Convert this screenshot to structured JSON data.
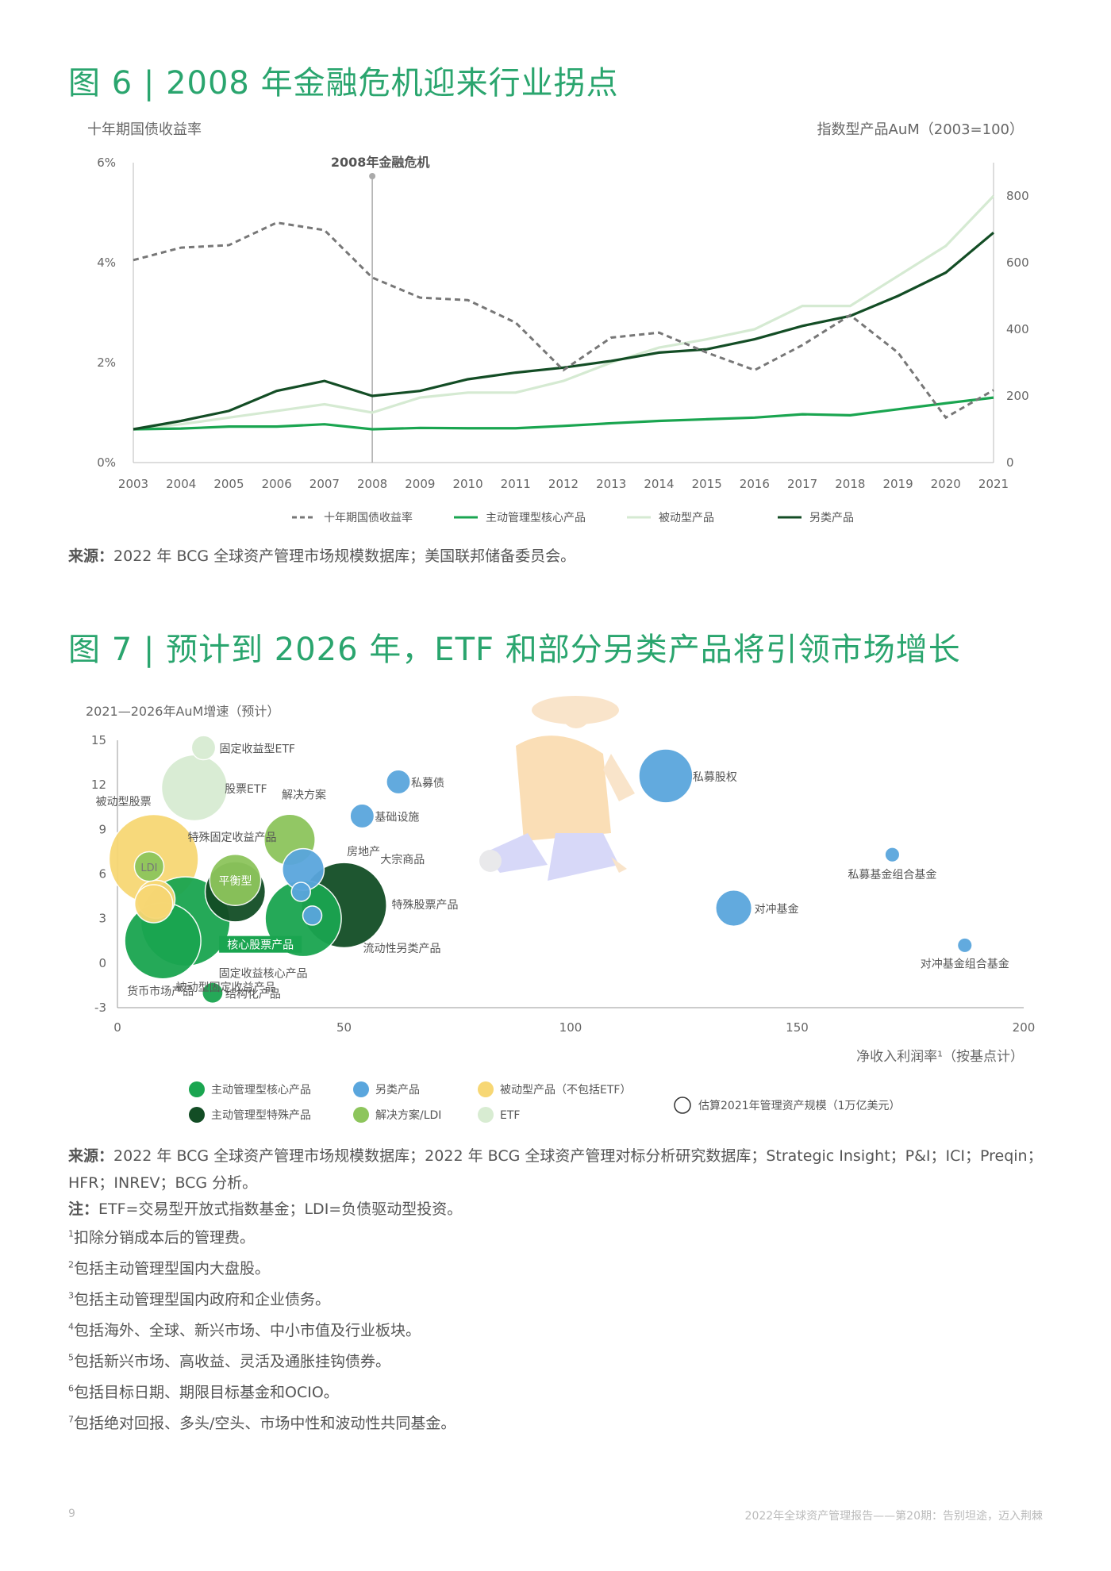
{
  "fig6": {
    "title": "图 6 | 2008 年金融危机迎来行业拐点",
    "left_axis_title": "十年期国债收益率",
    "right_axis_title": "指数型产品AuM（2003=100）",
    "annotation": "2008年金融危机",
    "source_label": "来源：",
    "source_text": "2022 年 BCG 全球资产管理市场规模数据库；美国联邦储备委员会。"
  },
  "fig7": {
    "title": "图 7 | 预计到 2026 年，ETF 和部分另类产品将引领市场增长",
    "y_title": "2021—2026年AuM增速（预计）",
    "x_title": "净收入利润率¹（按基点计）",
    "source_label": "来源：",
    "source_text": "2022 年 BCG 全球资产管理市场规模数据库；2022 年 BCG 全球资产管理对标分析研究数据库；Strategic Insight；P&I；ICI；Preqin；HFR；INREV；BCG 分析。",
    "note_label": "注：",
    "note_text": "ETF=交易型开放式指数基金；LDI=负债驱动型投资。",
    "footnotes": [
      {
        "num": "1",
        "text": "扣除分销成本后的管理费。"
      },
      {
        "num": "2",
        "text": "包括主动管理型国内大盘股。"
      },
      {
        "num": "3",
        "text": "包括主动管理型国内政府和企业债务。"
      },
      {
        "num": "4",
        "text": "包括海外、全球、新兴市场、中小市值及行业板块。"
      },
      {
        "num": "5",
        "text": "包括新兴市场、高收益、灵活及通胀挂钩债券。"
      },
      {
        "num": "6",
        "text": "包括目标日期、期限目标基金和OCIO。"
      },
      {
        "num": "7",
        "text": "包括绝对回报、多头/空头、市场中性和波动性共同基金。"
      }
    ],
    "size_legend": "估算2021年管理资产规模（1万亿美元）"
  },
  "footer": {
    "page": "9",
    "report": "2022年全球资产管理报告——第20期：告别坦途，迈入荆棘"
  },
  "colors": {
    "title": "#2aa56e",
    "active_core": "#1aa550",
    "passive": "#d5ead2",
    "alternative": "#134d25",
    "treasury": "#777777",
    "blue": "#5aa6dd",
    "yellow": "#f7d774",
    "solution": "#8dc55c",
    "etf": "#d8ecd2",
    "active_special": "#134d25"
  },
  "chart_data": [
    {
      "type": "line",
      "x": [
        "2003",
        "2004",
        "2005",
        "2006",
        "2007",
        "2008",
        "2009",
        "2010",
        "2011",
        "2012",
        "2013",
        "2014",
        "2015",
        "2016",
        "2017",
        "2018",
        "2019",
        "2020",
        "2021"
      ],
      "left_ylim": [
        0,
        6
      ],
      "left_ticks": [
        "0%",
        "2%",
        "4%",
        "6%"
      ],
      "right_ylim": [
        0,
        900
      ],
      "right_ticks": [
        "0",
        "200",
        "400",
        "600",
        "800"
      ],
      "series": [
        {
          "name": "十年期国债收益率",
          "axis": "left",
          "style": "dashed",
          "color": "#777777",
          "values": [
            4.05,
            4.3,
            4.35,
            4.8,
            4.65,
            3.7,
            3.3,
            3.25,
            2.8,
            1.85,
            2.5,
            2.6,
            2.2,
            1.85,
            2.35,
            2.95,
            2.2,
            0.9,
            1.45
          ]
        },
        {
          "name": "主动管理型核心产品",
          "axis": "right",
          "style": "solid",
          "color": "#1aa550",
          "values": [
            100,
            102,
            108,
            108,
            115,
            100,
            104,
            103,
            103,
            110,
            118,
            125,
            130,
            135,
            145,
            142,
            160,
            178,
            195
          ]
        },
        {
          "name": "被动型产品",
          "axis": "right",
          "style": "solid",
          "color": "#d5ead2",
          "values": [
            100,
            115,
            135,
            155,
            175,
            150,
            195,
            210,
            210,
            245,
            300,
            345,
            370,
            400,
            470,
            470,
            560,
            650,
            800
          ]
        },
        {
          "name": "另类产品",
          "axis": "right",
          "style": "solid",
          "color": "#134d25",
          "values": [
            100,
            125,
            155,
            215,
            245,
            200,
            215,
            250,
            270,
            285,
            305,
            330,
            340,
            370,
            410,
            440,
            500,
            570,
            690
          ]
        }
      ],
      "annotation": {
        "x": "2008",
        "text": "2008年金融危机"
      }
    },
    {
      "type": "scatter",
      "xlim": [
        0,
        200
      ],
      "ylim": [
        -3,
        15
      ],
      "x_ticks": [
        0,
        50,
        100,
        150,
        200
      ],
      "y_ticks": [
        -3,
        0,
        3,
        6,
        9,
        12,
        15
      ],
      "legend": [
        {
          "name": "主动管理型核心产品",
          "color": "#1aa550"
        },
        {
          "name": "另类产品",
          "color": "#5aa6dd"
        },
        {
          "name": "被动型产品（不包括ETF）",
          "color": "#f7d774"
        },
        {
          "name": "主动管理型特殊产品",
          "color": "#134d25"
        },
        {
          "name": "解决方案/LDI",
          "color": "#8dc55c"
        },
        {
          "name": "ETF",
          "color": "#d8ecd2"
        }
      ],
      "points": [
        {
          "label": "固定收益型ETF",
          "x": 19,
          "y": 14.5,
          "size": 0.4,
          "group": "ETF"
        },
        {
          "label": "股票ETF",
          "x": 17,
          "y": 11.8,
          "size": 3,
          "group": "ETF"
        },
        {
          "label": "被动型股票",
          "x": 8,
          "y": 7,
          "size": 5.5,
          "group": "被动型产品（不包括ETF）"
        },
        {
          "label": "LDI",
          "x": 7,
          "y": 6.5,
          "size": 0.6,
          "group": "解决方案/LDI"
        },
        {
          "label": "",
          "x": 8.5,
          "y": 4.3,
          "size": 1,
          "group": "被动型产品（不包括ETF）"
        },
        {
          "label": "解决方案",
          "x": 38,
          "y": 8.3,
          "size": 1.8,
          "group": "解决方案/LDI"
        },
        {
          "label": "特殊固定收益产品",
          "x": 26,
          "y": 4.8,
          "size": 2.5,
          "group": "主动管理型特殊产品"
        },
        {
          "label": "平衡型",
          "x": 26,
          "y": 5.6,
          "size": 1.8,
          "group": "解决方案/LDI"
        },
        {
          "label": "私募债",
          "x": 62,
          "y": 12.2,
          "size": 0.4,
          "group": "另类产品"
        },
        {
          "label": "基础设施",
          "x": 54,
          "y": 9.9,
          "size": 0.4,
          "group": "另类产品"
        },
        {
          "label": "房地产",
          "x": 41,
          "y": 6.3,
          "size": 1.2,
          "group": "另类产品"
        },
        {
          "label": "大宗商品",
          "x": 40.5,
          "y": 4.8,
          "size": 0.25,
          "group": "另类产品"
        },
        {
          "label": "特殊股票产品",
          "x": 50,
          "y": 3.9,
          "size": 5,
          "group": "主动管理型特殊产品"
        },
        {
          "label": "核心股票产品",
          "x": 41,
          "y": 3,
          "size": 4,
          "group": "主动管理型核心产品"
        },
        {
          "label": "流动性另类产品",
          "x": 43,
          "y": 3.2,
          "size": 0.25,
          "group": "另类产品"
        },
        {
          "label": "固定收益核心产品",
          "x": 15,
          "y": 2.8,
          "size": 5.5,
          "group": "主动管理型核心产品"
        },
        {
          "label": "被动型固定收益产品",
          "x": 8,
          "y": 4,
          "size": 1,
          "group": "被动型产品（不包括ETF）"
        },
        {
          "label": "货币市场产品",
          "x": 10,
          "y": 1.5,
          "size": 4,
          "group": "主动管理型核心产品"
        },
        {
          "label": "结构化产品",
          "x": 21,
          "y": -2,
          "size": 0.3,
          "group": "主动管理型核心产品"
        },
        {
          "label": "私募股权",
          "x": 121,
          "y": 12.6,
          "size": 2,
          "group": "另类产品"
        },
        {
          "label": "私募基金组合基金",
          "x": 171,
          "y": 7.3,
          "size": 0.15,
          "group": "另类产品"
        },
        {
          "label": "对冲基金",
          "x": 136,
          "y": 3.7,
          "size": 0.9,
          "group": "另类产品"
        },
        {
          "label": "对冲基金组合基金",
          "x": 187,
          "y": 1.2,
          "size": 0.15,
          "group": "另类产品"
        }
      ],
      "size_legend": "估算2021年管理资产规模（1万亿美元）"
    }
  ]
}
